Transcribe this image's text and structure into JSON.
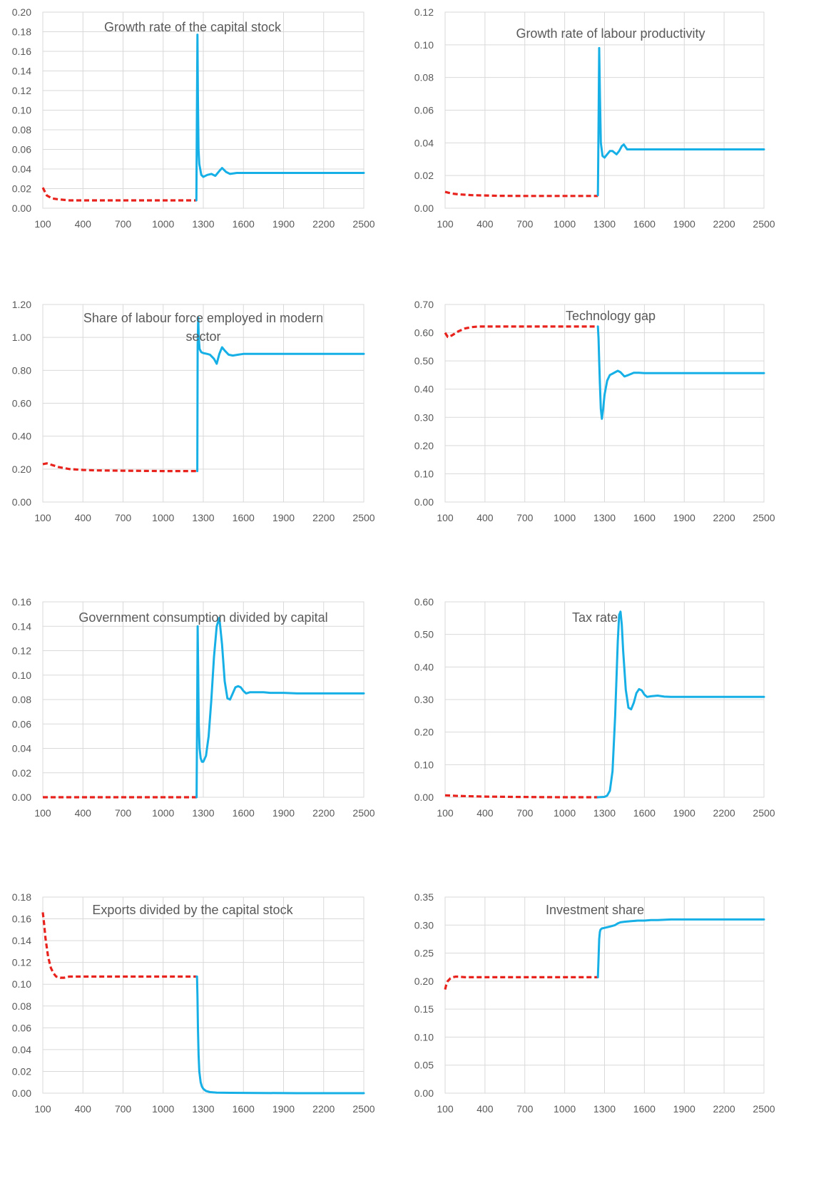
{
  "colors": {
    "pre_series": "#e8221c",
    "post_series": "#16b0e6",
    "grid": "#d9d9d9",
    "text": "#595959"
  },
  "chart_data": [
    {
      "type": "line",
      "title": "Growth rate of the capital stock",
      "xlim": [
        100,
        2500
      ],
      "xticks": [
        "100",
        "400",
        "700",
        "1000",
        "1300",
        "1600",
        "1900",
        "2200",
        "2500"
      ],
      "ylim": [
        0,
        0.2
      ],
      "yticks": [
        "0.00",
        "0.02",
        "0.04",
        "0.06",
        "0.08",
        "0.10",
        "0.12",
        "0.14",
        "0.16",
        "0.18",
        "0.20"
      ],
      "grid": true,
      "series": [
        {
          "style": "dashed",
          "x": [
            100,
            130,
            170,
            220,
            300,
            400,
            600,
            800,
            1000,
            1250
          ],
          "y": [
            0.021,
            0.013,
            0.01,
            0.009,
            0.008,
            0.008,
            0.008,
            0.008,
            0.008,
            0.008
          ]
        },
        {
          "style": "solid",
          "x": [
            1248,
            1252,
            1256,
            1260,
            1264,
            1270,
            1285,
            1300,
            1330,
            1360,
            1390,
            1420,
            1440,
            1470,
            1500,
            1550,
            1600,
            2000,
            2500
          ],
          "y": [
            0.008,
            0.09,
            0.177,
            0.11,
            0.06,
            0.045,
            0.034,
            0.032,
            0.034,
            0.035,
            0.033,
            0.038,
            0.041,
            0.037,
            0.035,
            0.036,
            0.036,
            0.036,
            0.036
          ]
        }
      ]
    },
    {
      "type": "line",
      "title": "Growth rate of labour productivity",
      "xlim": [
        100,
        2500
      ],
      "xticks": [
        "100",
        "400",
        "700",
        "1000",
        "1300",
        "1600",
        "1900",
        "2200",
        "2500"
      ],
      "ylim": [
        0,
        0.12
      ],
      "yticks": [
        "0.00",
        "0.02",
        "0.04",
        "0.06",
        "0.08",
        "0.10",
        "0.12"
      ],
      "grid": true,
      "series": [
        {
          "style": "dashed",
          "x": [
            100,
            150,
            200,
            300,
            400,
            500,
            700,
            1000,
            1250
          ],
          "y": [
            0.01,
            0.009,
            0.0085,
            0.008,
            0.0078,
            0.0076,
            0.0075,
            0.0075,
            0.0075
          ]
        },
        {
          "style": "solid",
          "x": [
            1250,
            1255,
            1260,
            1265,
            1272,
            1285,
            1300,
            1320,
            1340,
            1360,
            1390,
            1410,
            1430,
            1445,
            1470,
            1500,
            1550,
            1600,
            2000,
            2500
          ],
          "y": [
            0.008,
            0.05,
            0.098,
            0.07,
            0.04,
            0.032,
            0.031,
            0.033,
            0.035,
            0.035,
            0.033,
            0.035,
            0.038,
            0.039,
            0.036,
            0.036,
            0.036,
            0.036,
            0.036,
            0.036
          ]
        }
      ]
    },
    {
      "type": "line",
      "title": "Share of labour force employed in modern sector",
      "xlim": [
        100,
        2500
      ],
      "xticks": [
        "100",
        "400",
        "700",
        "1000",
        "1300",
        "1600",
        "1900",
        "2200",
        "2500"
      ],
      "ylim": [
        0,
        1.2
      ],
      "yticks": [
        "0.00",
        "0.20",
        "0.40",
        "0.60",
        "0.80",
        "1.00",
        "1.20"
      ],
      "grid": true,
      "series": [
        {
          "style": "dashed",
          "x": [
            100,
            130,
            170,
            220,
            300,
            400,
            500,
            700,
            1000,
            1250
          ],
          "y": [
            0.23,
            0.235,
            0.225,
            0.212,
            0.2,
            0.195,
            0.192,
            0.19,
            0.188,
            0.188
          ]
        },
        {
          "style": "solid",
          "x": [
            1255,
            1258,
            1262,
            1266,
            1272,
            1285,
            1300,
            1330,
            1350,
            1380,
            1400,
            1420,
            1440,
            1460,
            1490,
            1520,
            1560,
            1600,
            2000,
            2500
          ],
          "y": [
            0.188,
            0.95,
            1.12,
            1.0,
            0.93,
            0.91,
            0.905,
            0.9,
            0.895,
            0.87,
            0.84,
            0.9,
            0.94,
            0.92,
            0.895,
            0.89,
            0.895,
            0.9,
            0.9,
            0.9
          ]
        }
      ]
    },
    {
      "type": "line",
      "title": "Technology gap",
      "xlim": [
        100,
        2500
      ],
      "xticks": [
        "100",
        "400",
        "700",
        "1000",
        "1300",
        "1600",
        "1900",
        "2200",
        "2500"
      ],
      "ylim": [
        0,
        0.7
      ],
      "yticks": [
        "0.00",
        "0.10",
        "0.20",
        "0.30",
        "0.40",
        "0.50",
        "0.60",
        "0.70"
      ],
      "grid": true,
      "series": [
        {
          "style": "dashed",
          "x": [
            100,
            120,
            150,
            200,
            250,
            300,
            350,
            400,
            600,
            1000,
            1250
          ],
          "y": [
            0.6,
            0.585,
            0.59,
            0.605,
            0.615,
            0.62,
            0.622,
            0.622,
            0.622,
            0.622,
            0.622
          ]
        },
        {
          "style": "solid",
          "x": [
            1250,
            1255,
            1260,
            1265,
            1272,
            1280,
            1290,
            1300,
            1320,
            1340,
            1360,
            1380,
            1400,
            1420,
            1450,
            1480,
            1520,
            1560,
            1600,
            2000,
            2500
          ],
          "y": [
            0.622,
            0.58,
            0.5,
            0.42,
            0.33,
            0.295,
            0.33,
            0.38,
            0.43,
            0.45,
            0.455,
            0.46,
            0.465,
            0.46,
            0.445,
            0.45,
            0.458,
            0.458,
            0.457,
            0.457,
            0.457
          ]
        }
      ]
    },
    {
      "type": "line",
      "title": "Government consumption divided by capital",
      "xlim": [
        100,
        2500
      ],
      "xticks": [
        "100",
        "400",
        "700",
        "1000",
        "1300",
        "1600",
        "1900",
        "2200",
        "2500"
      ],
      "ylim": [
        0,
        0.16
      ],
      "yticks": [
        "0.00",
        "0.02",
        "0.04",
        "0.06",
        "0.08",
        "0.10",
        "0.12",
        "0.14",
        "0.16"
      ],
      "grid": true,
      "series": [
        {
          "style": "dashed",
          "x": [
            100,
            400,
            700,
            1000,
            1250
          ],
          "y": [
            0.0,
            0.0,
            0.0,
            0.0,
            0.0
          ]
        },
        {
          "style": "solid",
          "x": [
            1250,
            1254,
            1258,
            1262,
            1266,
            1272,
            1280,
            1290,
            1300,
            1320,
            1340,
            1360,
            1380,
            1400,
            1420,
            1440,
            1460,
            1480,
            1500,
            1520,
            1540,
            1560,
            1580,
            1600,
            1620,
            1650,
            1700,
            1750,
            1800,
            1900,
            2000,
            2500
          ],
          "y": [
            0.0,
            0.07,
            0.14,
            0.1,
            0.06,
            0.04,
            0.032,
            0.029,
            0.029,
            0.034,
            0.05,
            0.08,
            0.115,
            0.14,
            0.147,
            0.125,
            0.095,
            0.081,
            0.08,
            0.085,
            0.09,
            0.091,
            0.09,
            0.087,
            0.085,
            0.086,
            0.086,
            0.086,
            0.0855,
            0.0855,
            0.085,
            0.085
          ]
        }
      ]
    },
    {
      "type": "line",
      "title": "Tax rate",
      "xlim": [
        100,
        2500
      ],
      "xticks": [
        "100",
        "400",
        "700",
        "1000",
        "1300",
        "1600",
        "1900",
        "2200",
        "2500"
      ],
      "ylim": [
        0,
        0.6
      ],
      "yticks": [
        "0.00",
        "0.10",
        "0.20",
        "0.30",
        "0.40",
        "0.50",
        "0.60"
      ],
      "grid": true,
      "series": [
        {
          "style": "dashed",
          "x": [
            100,
            200,
            400,
            600,
            800,
            1000,
            1250
          ],
          "y": [
            0.006,
            0.004,
            0.002,
            0.001,
            0.0005,
            0.0,
            0.0
          ]
        },
        {
          "style": "solid",
          "x": [
            1250,
            1300,
            1320,
            1340,
            1360,
            1380,
            1400,
            1410,
            1420,
            1430,
            1440,
            1460,
            1480,
            1500,
            1520,
            1540,
            1560,
            1580,
            1600,
            1620,
            1650,
            1700,
            1750,
            1800,
            2000,
            2500
          ],
          "y": [
            0.0,
            0.001,
            0.005,
            0.02,
            0.08,
            0.25,
            0.48,
            0.56,
            0.57,
            0.53,
            0.45,
            0.33,
            0.275,
            0.27,
            0.29,
            0.32,
            0.332,
            0.328,
            0.315,
            0.308,
            0.31,
            0.312,
            0.309,
            0.308,
            0.308,
            0.308
          ]
        }
      ]
    },
    {
      "type": "line",
      "title": "Exports divided by the capital stock",
      "xlim": [
        100,
        2500
      ],
      "xticks": [
        "100",
        "400",
        "700",
        "1000",
        "1300",
        "1600",
        "1900",
        "2200",
        "2500"
      ],
      "ylim": [
        0,
        0.18
      ],
      "yticks": [
        "0.00",
        "0.02",
        "0.04",
        "0.06",
        "0.08",
        "0.10",
        "0.12",
        "0.14",
        "0.16",
        "0.18"
      ],
      "grid": true,
      "series": [
        {
          "style": "dashed",
          "x": [
            100,
            110,
            120,
            140,
            160,
            180,
            200,
            230,
            260,
            300,
            400,
            600,
            1000,
            1250
          ],
          "y": [
            0.166,
            0.155,
            0.142,
            0.125,
            0.115,
            0.11,
            0.107,
            0.106,
            0.106,
            0.107,
            0.107,
            0.107,
            0.107,
            0.107
          ]
        },
        {
          "style": "solid",
          "x": [
            1250,
            1253,
            1256,
            1260,
            1265,
            1270,
            1280,
            1290,
            1300,
            1320,
            1350,
            1400,
            1500,
            2000,
            2500
          ],
          "y": [
            0.107,
            0.107,
            0.09,
            0.06,
            0.035,
            0.02,
            0.01,
            0.006,
            0.004,
            0.002,
            0.001,
            0.0005,
            0.0003,
            0.0,
            0.0
          ]
        }
      ]
    },
    {
      "type": "line",
      "title": "Investment share",
      "xlim": [
        100,
        2500
      ],
      "xticks": [
        "100",
        "400",
        "700",
        "1000",
        "1300",
        "1600",
        "1900",
        "2200",
        "2500"
      ],
      "ylim": [
        0,
        0.35
      ],
      "yticks": [
        "0.00",
        "0.05",
        "0.10",
        "0.15",
        "0.20",
        "0.25",
        "0.30",
        "0.35"
      ],
      "grid": true,
      "series": [
        {
          "style": "dashed",
          "x": [
            100,
            110,
            120,
            140,
            160,
            180,
            200,
            250,
            300,
            400,
            600,
            1000,
            1250
          ],
          "y": [
            0.185,
            0.195,
            0.2,
            0.205,
            0.207,
            0.208,
            0.208,
            0.207,
            0.207,
            0.207,
            0.207,
            0.207,
            0.207
          ]
        },
        {
          "style": "solid",
          "x": [
            1250,
            1255,
            1260,
            1265,
            1270,
            1280,
            1300,
            1350,
            1380,
            1400,
            1420,
            1450,
            1500,
            1550,
            1600,
            1650,
            1700,
            1800,
            2000,
            2500
          ],
          "y": [
            0.207,
            0.24,
            0.275,
            0.288,
            0.292,
            0.294,
            0.295,
            0.298,
            0.3,
            0.303,
            0.305,
            0.306,
            0.307,
            0.308,
            0.308,
            0.309,
            0.309,
            0.31,
            0.31,
            0.31
          ]
        }
      ]
    }
  ]
}
